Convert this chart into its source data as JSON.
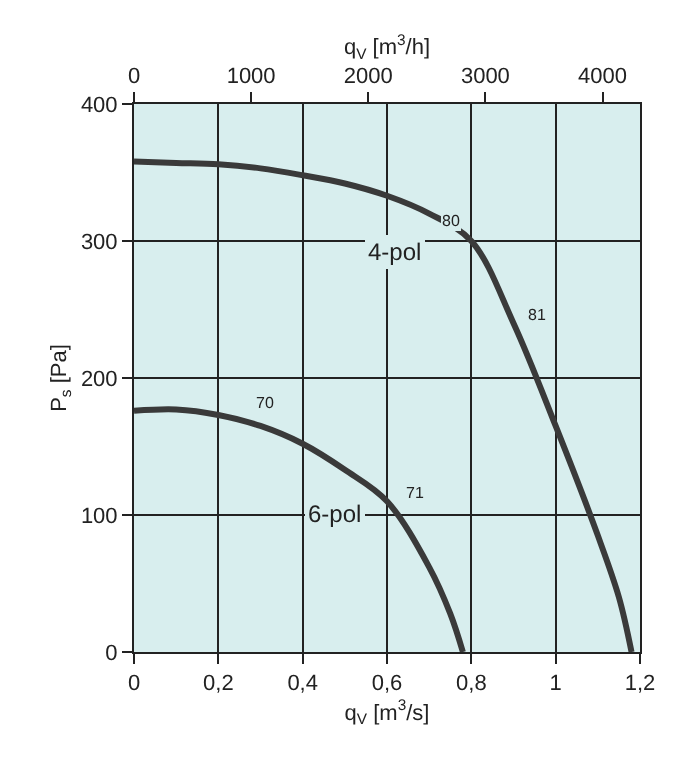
{
  "chart_data": {
    "type": "line",
    "xlabel": "q$_{V}$ [m$^{3}$/s]",
    "ylabel": "P$_{s}$ [Pa]",
    "x2label": "q$_{V}$ [m$^{3}$/h]",
    "series": [
      {
        "name": "4-pol",
        "color": "#3a3a3a",
        "x": [
          0,
          0.1,
          0.2,
          0.3,
          0.4,
          0.5,
          0.6,
          0.7,
          0.8,
          0.9,
          1.0,
          1.1,
          1.15,
          1.18
        ],
        "values": [
          358,
          357,
          356,
          353,
          348,
          342,
          333,
          320,
          300,
          240,
          165,
          85,
          40,
          0
        ]
      },
      {
        "name": "6-pol",
        "color": "#3a3a3a",
        "x": [
          0,
          0.1,
          0.2,
          0.3,
          0.4,
          0.5,
          0.6,
          0.7,
          0.75,
          0.78
        ],
        "values": [
          176,
          177,
          173,
          165,
          152,
          133,
          110,
          62,
          28,
          0
        ]
      }
    ],
    "xlim": [
      0,
      1.2
    ],
    "xticks": [
      0,
      {
        "value": 0.2,
        "label": "0,2"
      },
      {
        "value": 0.4,
        "label": "0,4"
      },
      {
        "value": 0.6,
        "label": "0,6"
      },
      {
        "value": 0.8,
        "label": "0,8"
      },
      1,
      {
        "value": 1.2,
        "label": "1,2"
      }
    ],
    "ylim": [
      0,
      400
    ],
    "yticks": [
      0,
      100,
      200,
      300,
      400
    ],
    "x2lim": [
      0,
      4320
    ],
    "x2ticks": [
      0,
      1000,
      2000,
      3000,
      4000
    ],
    "grid": true,
    "legend": false,
    "marker": "none",
    "line_style": "solid",
    "annotations": [
      {
        "text": "80",
        "x": 0.8,
        "y": 300
      },
      {
        "text": "81",
        "x": 0.9,
        "y": 240
      },
      {
        "text": "70",
        "x": 0.3,
        "y": 165
      },
      {
        "text": "71",
        "x": 0.6,
        "y": 110
      }
    ]
  }
}
